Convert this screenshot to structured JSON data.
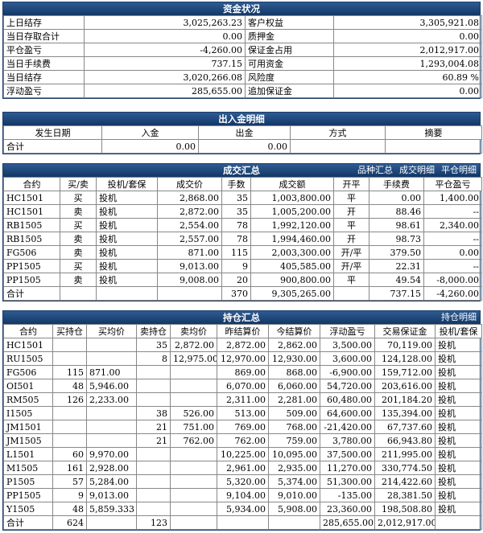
{
  "funds": {
    "title": "资金状况",
    "rows": [
      {
        "l1": "上日结存",
        "v1": "3,025,263.23",
        "l2": "客户权益",
        "v2": "3,305,921.08"
      },
      {
        "l1": "当日存取合计",
        "v1": "0.00",
        "l2": "质押金",
        "v2": "0.00"
      },
      {
        "l1": "平仓盈亏",
        "v1": "-4,260.00",
        "l2": "保证金占用",
        "v2": "2,012,917.00"
      },
      {
        "l1": "当日手续费",
        "v1": "737.15",
        "l2": "可用资金",
        "v2": "1,293,004.08"
      },
      {
        "l1": "当日结存",
        "v1": "3,020,266.08",
        "l2": "风险度",
        "v2": "60.89 %"
      },
      {
        "l1": "浮动盈亏",
        "v1": "285,655.00",
        "l2": "追加保证金",
        "v2": "0.00"
      }
    ]
  },
  "deposits": {
    "title": "出入金明细",
    "headers": [
      "发生日期",
      "入金",
      "出金",
      "方式",
      "摘要"
    ],
    "total": {
      "label": "合计",
      "in": "0.00",
      "out": "0.00",
      "method": "",
      "memo": ""
    }
  },
  "trades": {
    "title": "成交汇总",
    "links": [
      "品种汇总",
      "成交明细",
      "平仓明细"
    ],
    "headers": [
      "合约",
      "买/卖",
      "投机/套保",
      "成交价",
      "手数",
      "成交额",
      "开平",
      "手续费",
      "平仓盈亏"
    ],
    "rows": [
      [
        "HC1501",
        "买",
        "投机",
        "2,868.00",
        "35",
        "1,003,800.00",
        "平",
        "0.00",
        "1,400.00"
      ],
      [
        "HC1501",
        "卖",
        "投机",
        "2,872.00",
        "35",
        "1,005,200.00",
        "开",
        "88.46",
        "--"
      ],
      [
        "RB1505",
        "买",
        "投机",
        "2,554.00",
        "78",
        "1,992,120.00",
        "平",
        "98.61",
        "2,340.00"
      ],
      [
        "RB1505",
        "卖",
        "投机",
        "2,557.00",
        "78",
        "1,994,460.00",
        "开",
        "98.73",
        "--"
      ],
      [
        "FG506",
        "卖",
        "投机",
        "871.00",
        "115",
        "2,003,300.00",
        "开/平",
        "379.50",
        "0.00"
      ],
      [
        "PP1505",
        "买",
        "投机",
        "9,013.00",
        "9",
        "405,585.00",
        "开/平",
        "22.31",
        "--"
      ],
      [
        "PP1505",
        "卖",
        "投机",
        "9,008.00",
        "20",
        "900,800.00",
        "平",
        "49.54",
        "-8,000.00"
      ]
    ],
    "total": [
      "合计",
      "",
      "",
      "",
      "370",
      "9,305,265.00",
      "",
      "737.15",
      "-4,260.00"
    ]
  },
  "positions": {
    "title": "持仓汇总",
    "links": [
      "持仓明细"
    ],
    "headers": [
      "合约",
      "买持仓",
      "买均价",
      "卖持仓",
      "卖均价",
      "昨结算价",
      "今结算价",
      "浮动盈亏",
      "交易保证金",
      "投机/套保"
    ],
    "rows": [
      [
        "HC1501",
        "",
        "",
        "35",
        "2,872.00",
        "2,872.00",
        "2,862.00",
        "3,500.00",
        "70,119.00",
        "投机"
      ],
      [
        "RU1505",
        "",
        "",
        "8",
        "12,975.00",
        "12,970.00",
        "12,930.00",
        "3,600.00",
        "124,128.00",
        "投机"
      ],
      [
        "FG506",
        "115",
        "871.00",
        "",
        "",
        "869.00",
        "868.00",
        "-6,900.00",
        "159,712.00",
        "投机"
      ],
      [
        "OI501",
        "48",
        "5,946.00",
        "",
        "",
        "6,070.00",
        "6,060.00",
        "54,720.00",
        "203,616.00",
        "投机"
      ],
      [
        "RM505",
        "126",
        "2,233.00",
        "",
        "",
        "2,311.00",
        "2,281.00",
        "60,480.00",
        "201,184.20",
        "投机"
      ],
      [
        "I1505",
        "",
        "",
        "38",
        "526.00",
        "513.00",
        "509.00",
        "64,600.00",
        "135,394.00",
        "投机"
      ],
      [
        "JM1501",
        "",
        "",
        "21",
        "751.00",
        "769.00",
        "768.00",
        "-21,420.00",
        "67,737.60",
        "投机"
      ],
      [
        "JM1505",
        "",
        "",
        "21",
        "762.00",
        "762.00",
        "759.00",
        "3,780.00",
        "66,943.80",
        "投机"
      ],
      [
        "L1501",
        "60",
        "9,970.00",
        "",
        "",
        "10,225.00",
        "10,095.00",
        "37,500.00",
        "211,995.00",
        "投机"
      ],
      [
        "M1505",
        "161",
        "2,928.00",
        "",
        "",
        "2,961.00",
        "2,935.00",
        "11,270.00",
        "330,774.50",
        "投机"
      ],
      [
        "P1505",
        "57",
        "5,284.00",
        "",
        "",
        "5,320.00",
        "5,374.00",
        "51,300.00",
        "214,422.60",
        "投机"
      ],
      [
        "PP1505",
        "9",
        "9,013.00",
        "",
        "",
        "9,104.00",
        "9,010.00",
        "-135.00",
        "28,381.50",
        "投机"
      ],
      [
        "Y1505",
        "48",
        "5,859.333",
        "",
        "",
        "5,934.00",
        "5,908.00",
        "23,360.00",
        "198,508.80",
        "投机"
      ]
    ],
    "total": [
      "合计",
      "624",
      "",
      "123",
      "",
      "",
      "",
      "285,655.00",
      "2,012,917.00",
      ""
    ]
  }
}
